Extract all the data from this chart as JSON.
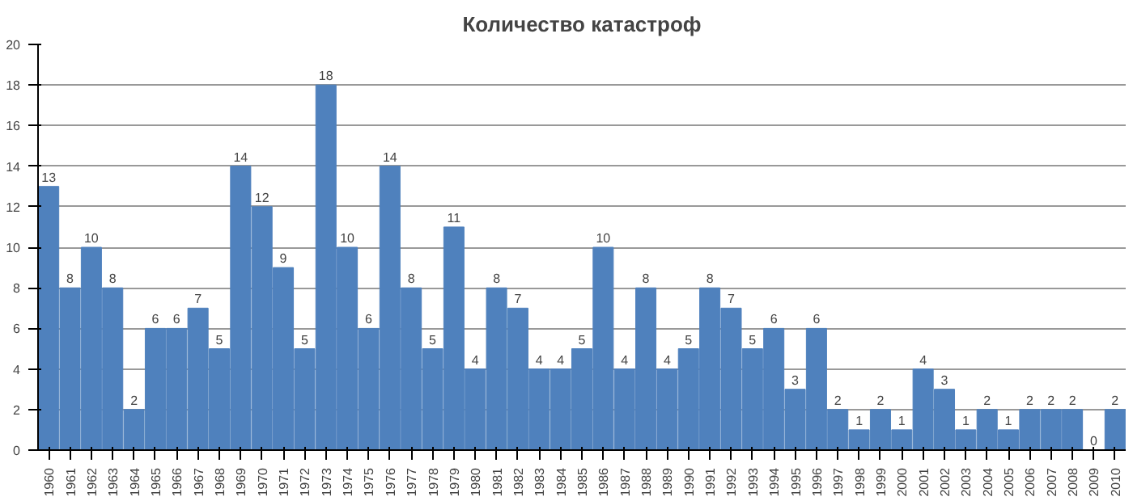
{
  "chart_data": {
    "type": "bar",
    "title": "Количество катастроф",
    "categories": [
      "1960",
      "1961",
      "1962",
      "1963",
      "1964",
      "1965",
      "1966",
      "1967",
      "1968",
      "1969",
      "1970",
      "1971",
      "1972",
      "1973",
      "1974",
      "1975",
      "1976",
      "1977",
      "1978",
      "1979",
      "1980",
      "1981",
      "1982",
      "1983",
      "1984",
      "1985",
      "1986",
      "1987",
      "1988",
      "1989",
      "1990",
      "1991",
      "1992",
      "1993",
      "1994",
      "1995",
      "1996",
      "1997",
      "1998",
      "1999",
      "2000",
      "2001",
      "2002",
      "2003",
      "2004",
      "2005",
      "2006",
      "2007",
      "2008",
      "2009",
      "2010"
    ],
    "values": [
      13,
      8,
      10,
      8,
      2,
      6,
      6,
      7,
      5,
      14,
      12,
      9,
      5,
      18,
      10,
      6,
      14,
      8,
      5,
      11,
      4,
      8,
      7,
      4,
      4,
      5,
      10,
      4,
      8,
      4,
      5,
      8,
      7,
      5,
      6,
      3,
      6,
      2,
      1,
      2,
      1,
      4,
      3,
      1,
      2,
      1,
      2,
      2,
      2,
      0,
      2
    ],
    "color": "#4f81bd",
    "ylim": [
      0,
      20
    ],
    "yticks": [
      0,
      2,
      4,
      6,
      8,
      10,
      12,
      14,
      16,
      18,
      20
    ],
    "grid": "y",
    "data_labels": true
  }
}
